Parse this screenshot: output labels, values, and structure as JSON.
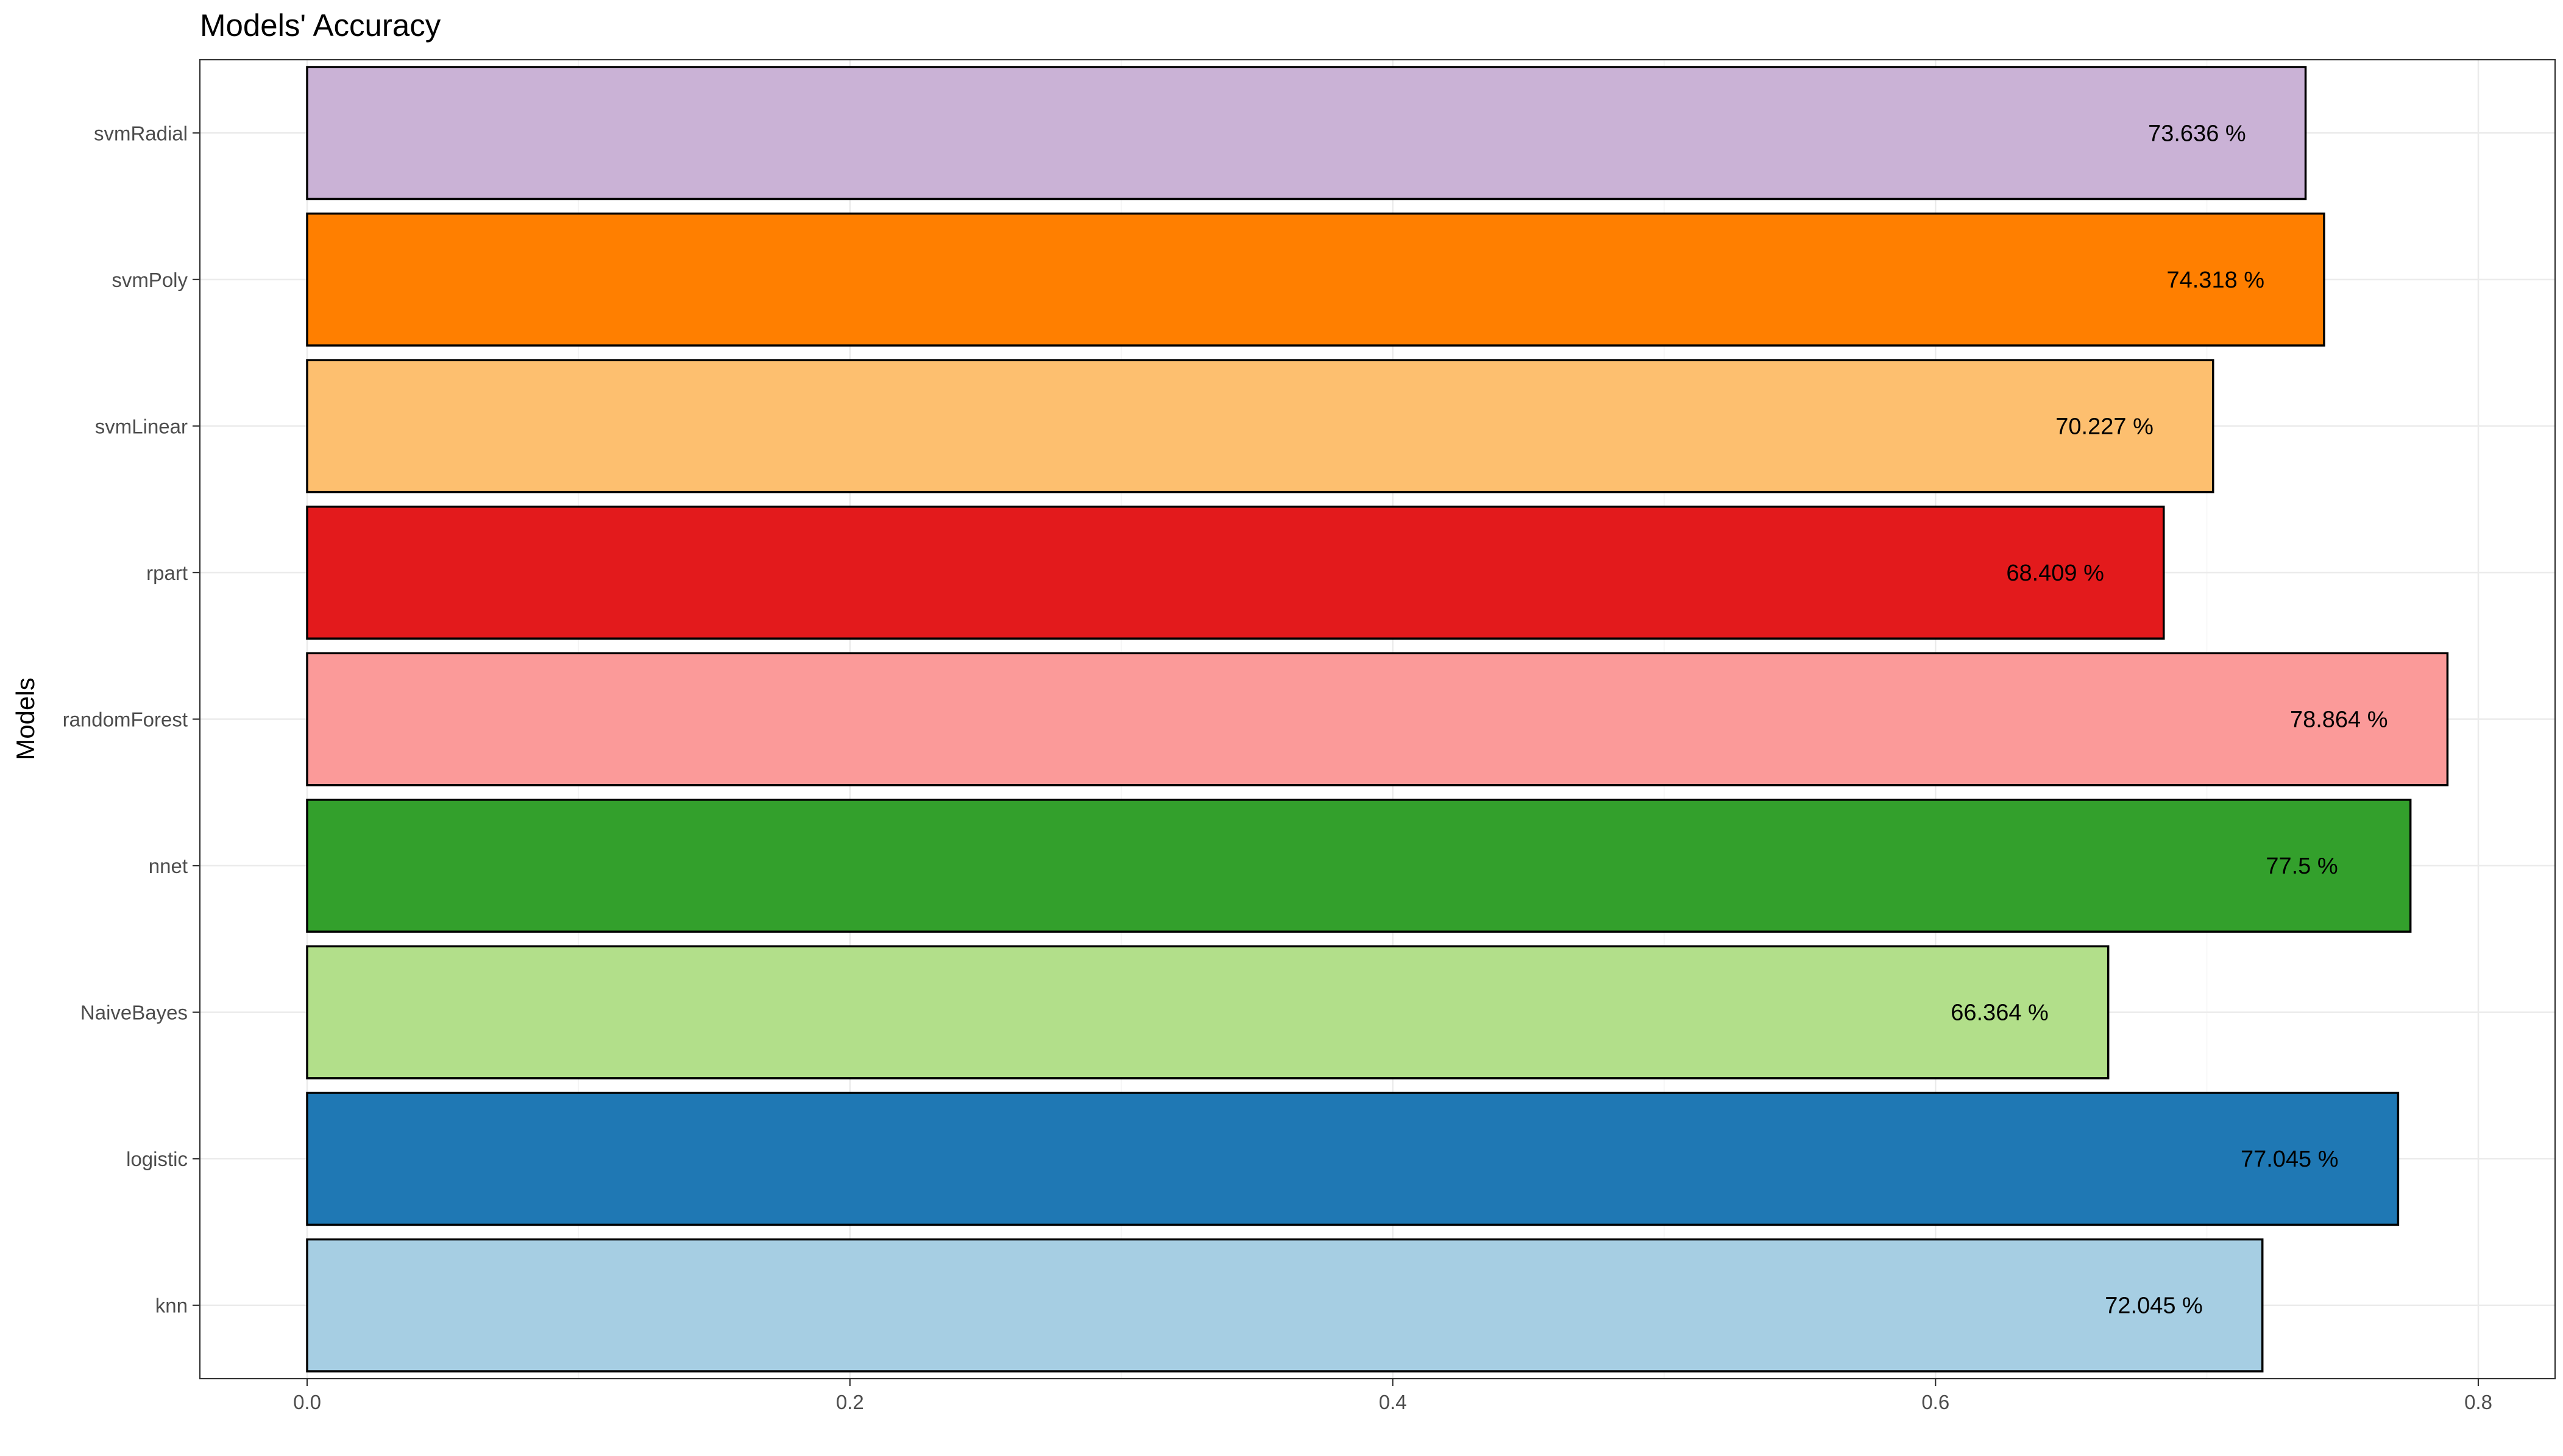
{
  "chart_data": {
    "type": "bar",
    "orientation": "horizontal",
    "title": "Models' Accuracy",
    "ylabel": "Models",
    "xlabel": "",
    "xlim": [
      0,
      0.8
    ],
    "xticks": [
      "0.0",
      "0.2",
      "0.4",
      "0.6",
      "0.8"
    ],
    "grid": true,
    "categories": [
      "knn",
      "logistic",
      "NaiveBayes",
      "nnet",
      "randomForest",
      "rpart",
      "svmLinear",
      "svmPoly",
      "svmRadial"
    ],
    "values": [
      0.72045,
      0.77045,
      0.66364,
      0.775,
      0.78864,
      0.68409,
      0.70227,
      0.74318,
      0.73636
    ],
    "data_labels": [
      "72.045 %",
      "77.045 %",
      "66.364 %",
      "77.5 %",
      "78.864 %",
      "68.409 %",
      "70.227 %",
      "74.318 %",
      "73.636 %"
    ],
    "colors": [
      "#a6cee3",
      "#1f78b4",
      "#b2df8a",
      "#33a02c",
      "#fb9a99",
      "#e31a1c",
      "#fdbf6f",
      "#ff7f00",
      "#cab2d6"
    ],
    "legend": "none"
  }
}
